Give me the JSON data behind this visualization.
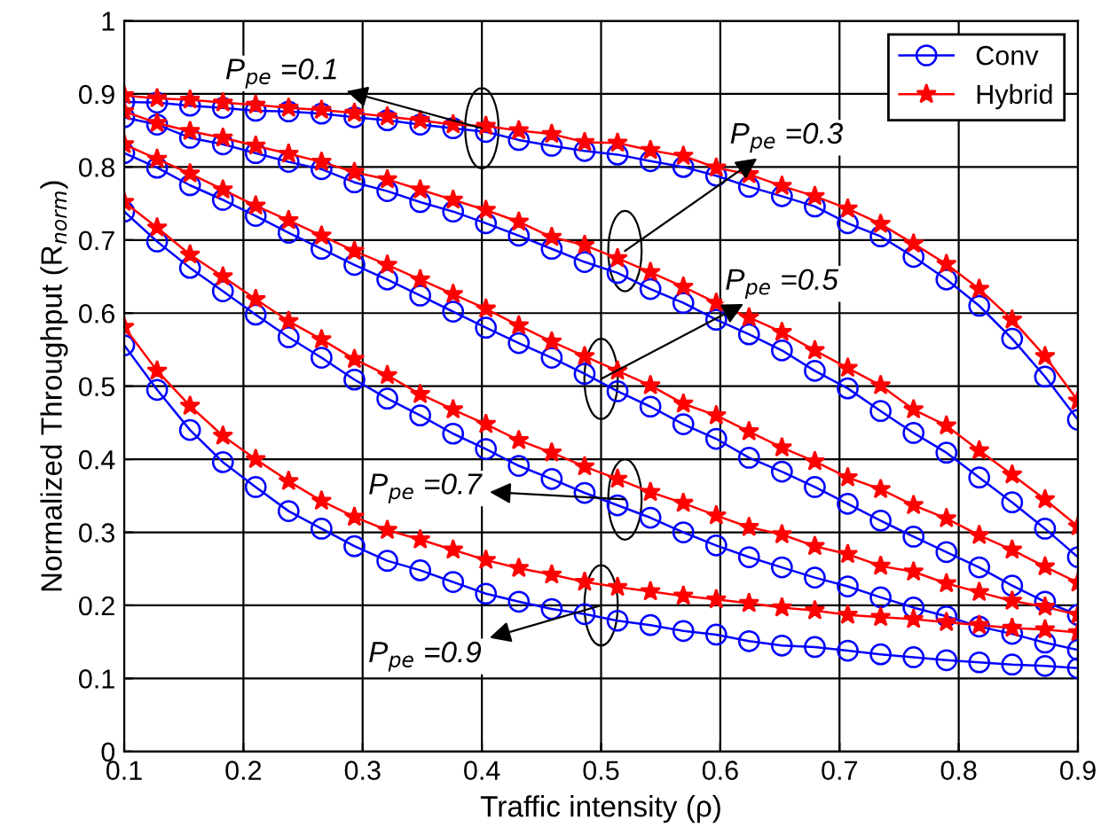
{
  "chart_data": {
    "type": "line",
    "xlabel": "Traffic intensity (ρ)",
    "ylabel": "Normalized Throughput (R$_{norm}$)",
    "x": [
      0.1,
      0.1276,
      0.1552,
      0.1828,
      0.2103,
      0.2379,
      0.2655,
      0.2931,
      0.3207,
      0.3483,
      0.3759,
      0.4034,
      0.431,
      0.4586,
      0.4862,
      0.5138,
      0.5414,
      0.569,
      0.5966,
      0.6241,
      0.6517,
      0.6793,
      0.7069,
      0.7345,
      0.7621,
      0.7897,
      0.8172,
      0.8448,
      0.8724,
      0.9
    ],
    "series": [
      {
        "name": "Conv",
        "color": "#0000ff",
        "marker": "circle",
        "values": [
          0.889,
          0.888,
          0.884,
          0.881,
          0.877,
          0.876,
          0.873,
          0.868,
          0.864,
          0.858,
          0.853,
          0.848,
          0.837,
          0.829,
          0.822,
          0.817,
          0.808,
          0.8,
          0.788,
          0.773,
          0.76,
          0.746,
          0.723,
          0.705,
          0.677,
          0.646,
          0.61,
          0.565,
          0.513,
          0.454
        ]
      },
      {
        "name": "Hybrid",
        "color": "#ff0000",
        "marker": "star",
        "values": [
          0.898,
          0.894,
          0.892,
          0.888,
          0.885,
          0.881,
          0.878,
          0.874,
          0.869,
          0.864,
          0.858,
          0.856,
          0.85,
          0.845,
          0.834,
          0.833,
          0.823,
          0.815,
          0.799,
          0.79,
          0.774,
          0.76,
          0.743,
          0.722,
          0.695,
          0.667,
          0.633,
          0.591,
          0.541,
          0.48
        ]
      },
      {
        "color": "#0000ff",
        "marker": "circle",
        "values": [
          0.868,
          0.858,
          0.84,
          0.831,
          0.819,
          0.807,
          0.797,
          0.779,
          0.767,
          0.752,
          0.739,
          0.723,
          0.706,
          0.688,
          0.67,
          0.655,
          0.633,
          0.614,
          0.591,
          0.571,
          0.549,
          0.521,
          0.497,
          0.466,
          0.436,
          0.409,
          0.375,
          0.341,
          0.305,
          0.266
        ]
      },
      {
        "color": "#ff0000",
        "marker": "star",
        "values": [
          0.876,
          0.86,
          0.849,
          0.84,
          0.829,
          0.818,
          0.807,
          0.793,
          0.783,
          0.769,
          0.755,
          0.741,
          0.725,
          0.704,
          0.693,
          0.675,
          0.656,
          0.636,
          0.614,
          0.594,
          0.574,
          0.549,
          0.525,
          0.501,
          0.468,
          0.446,
          0.412,
          0.379,
          0.345,
          0.308
        ]
      },
      {
        "color": "#0000ff",
        "marker": "circle",
        "values": [
          0.819,
          0.799,
          0.775,
          0.755,
          0.733,
          0.71,
          0.688,
          0.666,
          0.646,
          0.624,
          0.602,
          0.58,
          0.559,
          0.539,
          0.517,
          0.493,
          0.472,
          0.448,
          0.428,
          0.402,
          0.383,
          0.362,
          0.339,
          0.316,
          0.294,
          0.273,
          0.252,
          0.227,
          0.205,
          0.187
        ]
      },
      {
        "color": "#ff0000",
        "marker": "star",
        "values": [
          0.831,
          0.811,
          0.791,
          0.769,
          0.747,
          0.727,
          0.706,
          0.685,
          0.666,
          0.646,
          0.626,
          0.606,
          0.583,
          0.561,
          0.541,
          0.521,
          0.501,
          0.476,
          0.46,
          0.438,
          0.416,
          0.397,
          0.375,
          0.359,
          0.337,
          0.319,
          0.296,
          0.276,
          0.253,
          0.231
        ]
      },
      {
        "color": "#0000ff",
        "marker": "circle",
        "values": [
          0.739,
          0.698,
          0.662,
          0.63,
          0.598,
          0.567,
          0.539,
          0.509,
          0.483,
          0.46,
          0.435,
          0.414,
          0.391,
          0.373,
          0.354,
          0.337,
          0.32,
          0.3,
          0.282,
          0.266,
          0.252,
          0.238,
          0.226,
          0.211,
          0.197,
          0.185,
          0.171,
          0.161,
          0.149,
          0.139
        ]
      },
      {
        "color": "#ff0000",
        "marker": "star",
        "values": [
          0.752,
          0.717,
          0.68,
          0.65,
          0.619,
          0.589,
          0.564,
          0.537,
          0.515,
          0.489,
          0.468,
          0.448,
          0.426,
          0.409,
          0.39,
          0.373,
          0.355,
          0.34,
          0.323,
          0.307,
          0.297,
          0.281,
          0.27,
          0.254,
          0.246,
          0.23,
          0.218,
          0.206,
          0.198,
          0.187
        ]
      },
      {
        "color": "#0000ff",
        "marker": "circle",
        "values": [
          0.556,
          0.495,
          0.44,
          0.396,
          0.362,
          0.329,
          0.305,
          0.281,
          0.261,
          0.248,
          0.232,
          0.216,
          0.205,
          0.195,
          0.188,
          0.179,
          0.173,
          0.165,
          0.16,
          0.151,
          0.145,
          0.143,
          0.138,
          0.133,
          0.129,
          0.125,
          0.122,
          0.119,
          0.117,
          0.114
        ]
      },
      {
        "color": "#ff0000",
        "marker": "star",
        "values": [
          0.581,
          0.521,
          0.473,
          0.432,
          0.4,
          0.37,
          0.343,
          0.321,
          0.303,
          0.29,
          0.276,
          0.262,
          0.251,
          0.242,
          0.232,
          0.225,
          0.219,
          0.213,
          0.208,
          0.203,
          0.197,
          0.193,
          0.187,
          0.184,
          0.181,
          0.177,
          0.173,
          0.169,
          0.167,
          0.163
        ]
      }
    ],
    "annotations": [
      {
        "text": "P$_{pe}$ =0.1",
        "x": 0.4,
        "y": 0.853
      },
      {
        "text": "P$_{pe}$ =0.3",
        "x": 0.52,
        "y": 0.685
      },
      {
        "text": "P$_{pe}$ =0.5",
        "x": 0.5,
        "y": 0.51
      },
      {
        "text": "P$_{pe}$ =0.7",
        "x": 0.52,
        "y": 0.345
      },
      {
        "text": "P$_{pe}$ =0.9",
        "x": 0.5,
        "y": 0.2
      }
    ],
    "xlim": [
      0.1,
      0.9
    ],
    "xticks": [
      0.1,
      0.2,
      0.3,
      0.4,
      0.5,
      0.6,
      0.7,
      0.8,
      0.9
    ],
    "ylim": [
      0,
      1
    ],
    "yticks": [
      0,
      0.1,
      0.2,
      0.3,
      0.4,
      0.5,
      0.6,
      0.7,
      0.8,
      0.9,
      1
    ],
    "grid": true,
    "legend": "top right",
    "line_style": "solid"
  }
}
